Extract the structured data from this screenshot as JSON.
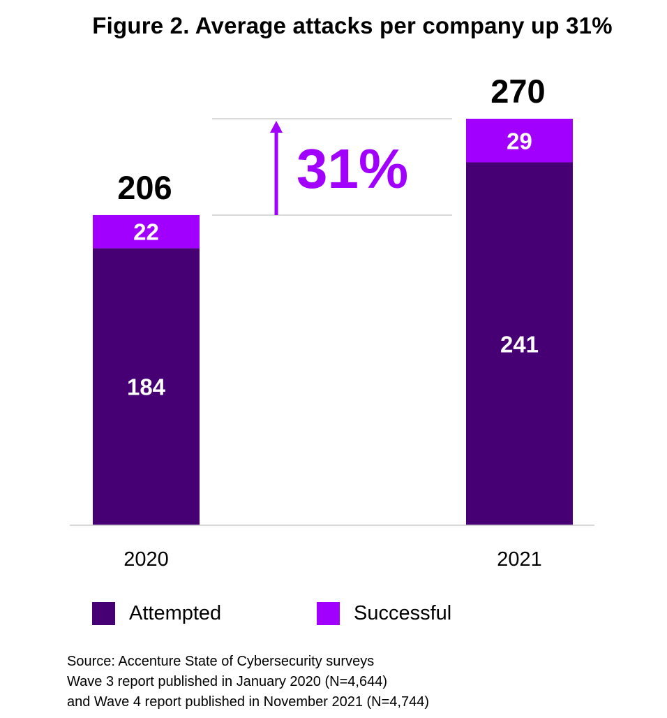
{
  "chart_data": {
    "type": "bar",
    "stacked": true,
    "title": "Figure 2. Average attacks per company up 31%",
    "categories": [
      "2020",
      "2021"
    ],
    "series": [
      {
        "name": "Attempted",
        "values": [
          184,
          241
        ],
        "color": "#460073"
      },
      {
        "name": "Successful",
        "values": [
          22,
          29
        ],
        "color": "#a100ff"
      }
    ],
    "totals": [
      "206",
      "270"
    ],
    "annotation": {
      "text": "31%",
      "color": "#a100ff"
    },
    "xlabel": "",
    "ylabel": "",
    "ylim": [
      0,
      270
    ],
    "grid": false,
    "legend_position": "bottom"
  },
  "source": {
    "lines": [
      "Source: Accenture State of Cybersecurity surveys",
      "Wave 3 report published in January 2020 (N=4,644)",
      "and Wave 4 report published in November 2021 (N=4,744)"
    ]
  }
}
